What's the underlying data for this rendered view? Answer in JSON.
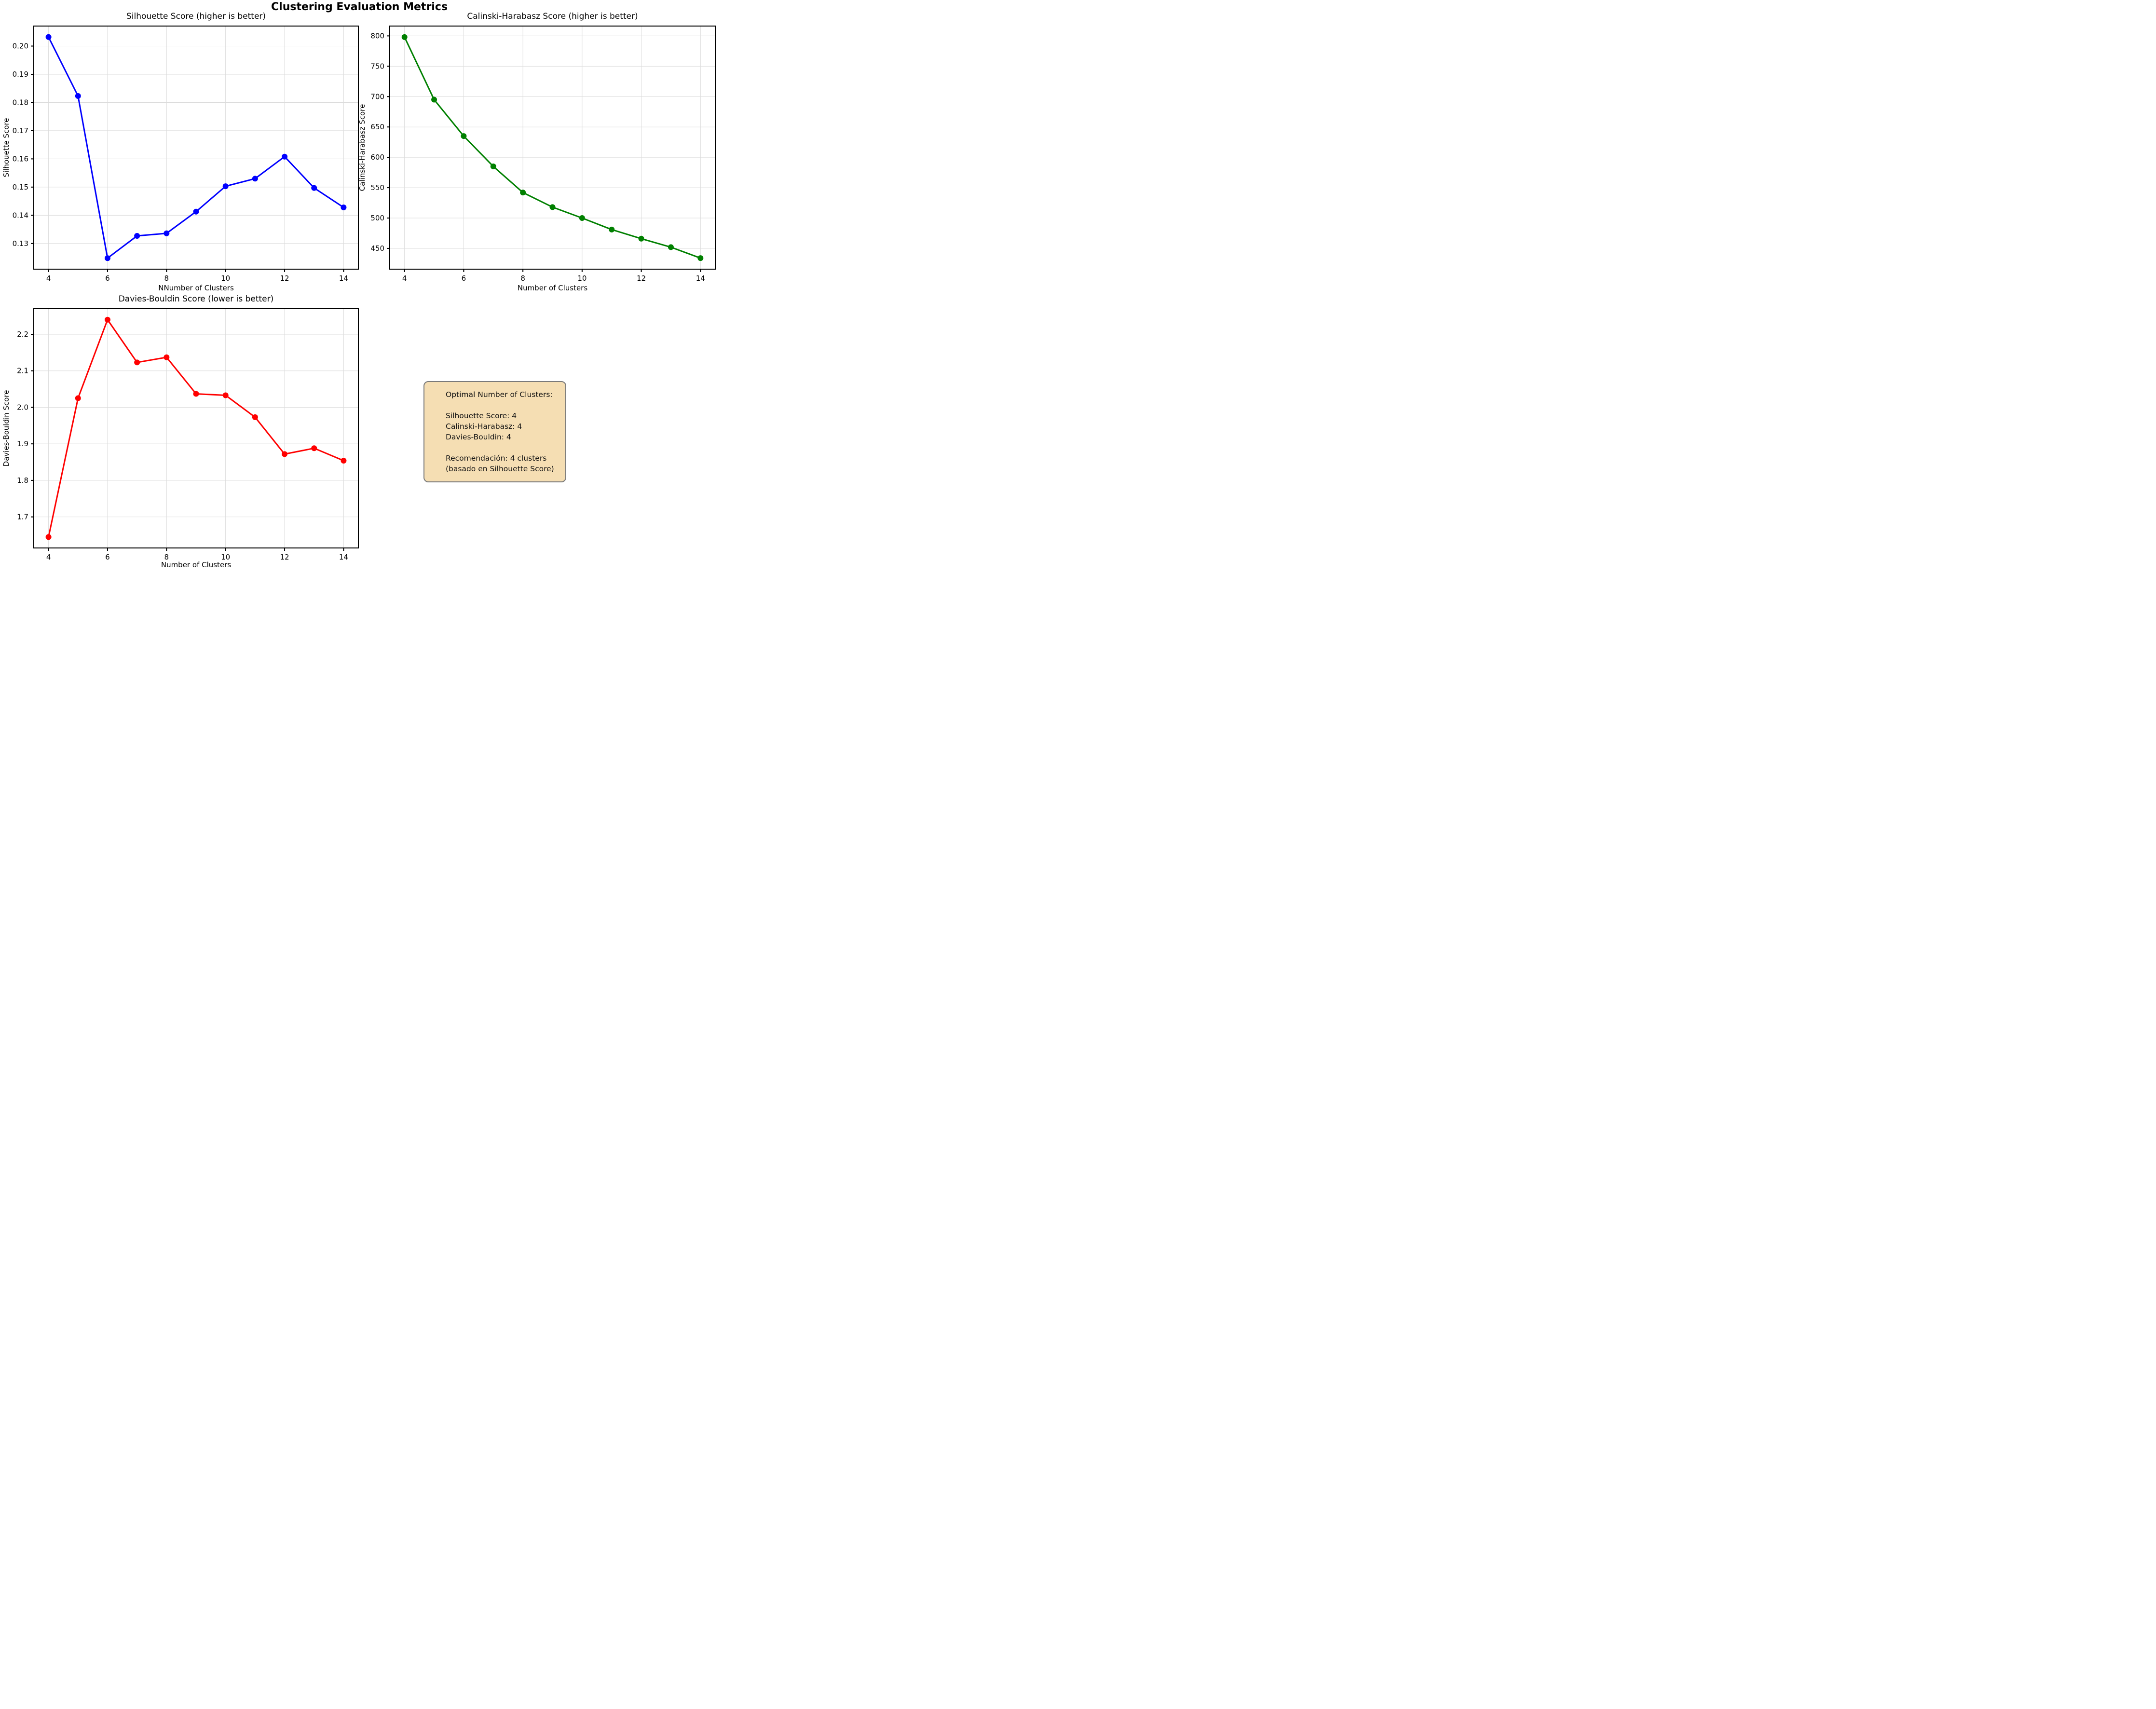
{
  "figure_title": "Clustering Evaluation Metrics",
  "style": {
    "background": "#ffffff",
    "grid_color": "#dcdcdc",
    "spine_color": "#000000"
  },
  "info_box": {
    "background": "#f5deb3",
    "border_color": "#7a7a7a",
    "lines": [
      "Optimal Number of Clusters:",
      "",
      "Silhouette Score: 4",
      "Calinski-Harabasz: 4",
      "Davies-Bouldin: 4",
      "",
      "Recomendación: 4 clusters",
      "(basado en Silhouette Score)"
    ]
  },
  "chart_data": [
    {
      "type": "line",
      "title": "Silhouette Score (higher is better)",
      "xlabel": "NNumber of Clusters",
      "ylabel": "Silhouette Score",
      "color": "#0000ff",
      "grid": true,
      "x": [
        4,
        5,
        6,
        7,
        8,
        9,
        10,
        11,
        12,
        13,
        14
      ],
      "y": [
        0.2032,
        0.1823,
        0.1248,
        0.1327,
        0.1336,
        0.1413,
        0.1503,
        0.153,
        0.1608,
        0.1497,
        0.1428
      ],
      "xlim": [
        3.5,
        14.5
      ],
      "ylim": [
        0.1209,
        0.2071
      ],
      "xticks": [
        4,
        6,
        8,
        10,
        12,
        14
      ],
      "xtick_labels": [
        "4",
        "6",
        "8",
        "10",
        "12",
        "14"
      ],
      "yticks": [
        0.13,
        0.14,
        0.15,
        0.16,
        0.17,
        0.18,
        0.19,
        0.2
      ],
      "ytick_labels": [
        "0.13",
        "0.14",
        "0.15",
        "0.16",
        "0.17",
        "0.18",
        "0.19",
        "0.20"
      ]
    },
    {
      "type": "line",
      "title": "Calinski-Harabasz Score (higher is better)",
      "xlabel": "Number of Clusters",
      "ylabel": "Calinski-Harabasz Score",
      "color": "#008000",
      "grid": true,
      "x": [
        4,
        5,
        6,
        7,
        8,
        9,
        10,
        11,
        12,
        13,
        14
      ],
      "y": [
        798,
        695,
        635,
        585,
        542,
        518,
        500,
        481,
        466,
        452,
        434
      ],
      "xlim": [
        3.5,
        14.5
      ],
      "ylim": [
        415.8,
        816.2
      ],
      "xticks": [
        4,
        6,
        8,
        10,
        12,
        14
      ],
      "xtick_labels": [
        "4",
        "6",
        "8",
        "10",
        "12",
        "14"
      ],
      "yticks": [
        450,
        500,
        550,
        600,
        650,
        700,
        750,
        800
      ],
      "ytick_labels": [
        "450",
        "500",
        "550",
        "600",
        "650",
        "700",
        "750",
        "800"
      ]
    },
    {
      "type": "line",
      "title": "Davies-Bouldin Score (lower is better)",
      "xlabel": "Number of Clusters",
      "ylabel": "Davies-Bouldin Score",
      "color": "#ff0000",
      "grid": true,
      "x": [
        4,
        5,
        6,
        7,
        8,
        9,
        10,
        11,
        12,
        13,
        14
      ],
      "y": [
        1.645,
        2.025,
        2.24,
        2.123,
        2.137,
        2.037,
        2.033,
        1.973,
        1.872,
        1.888,
        1.854
      ],
      "xlim": [
        3.5,
        14.5
      ],
      "ylim": [
        1.615,
        2.27
      ],
      "xticks": [
        4,
        6,
        8,
        10,
        12,
        14
      ],
      "xtick_labels": [
        "4",
        "6",
        "8",
        "10",
        "12",
        "14"
      ],
      "yticks": [
        1.7,
        1.8,
        1.9,
        2.0,
        2.1,
        2.2
      ],
      "ytick_labels": [
        "1.7",
        "1.8",
        "1.9",
        "2.0",
        "2.1",
        "2.2"
      ]
    }
  ]
}
